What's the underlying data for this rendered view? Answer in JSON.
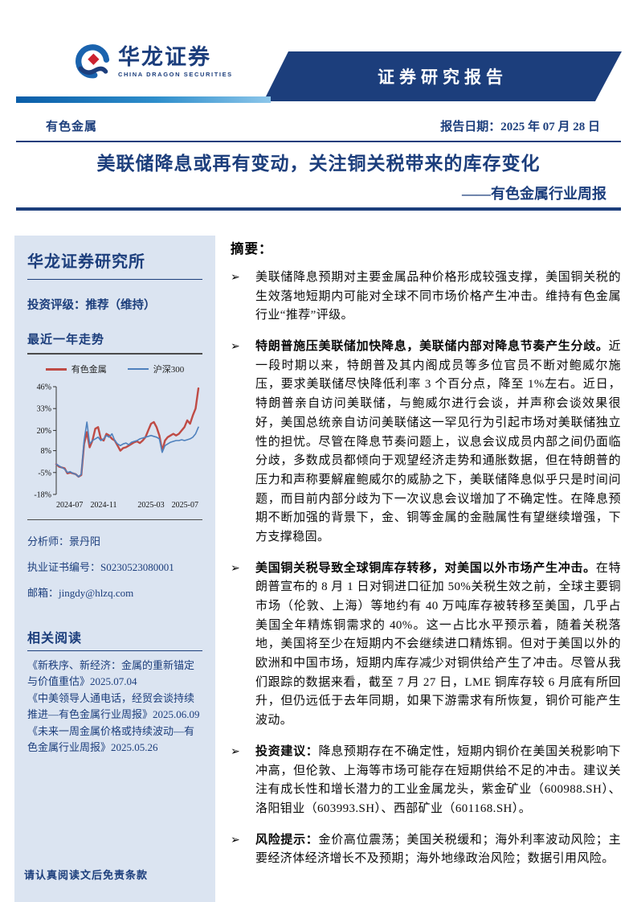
{
  "colors": {
    "navy": "#1c3e7c",
    "sidebar_bg": "#dbe4f1",
    "series_red": "#bf4b45",
    "series_blue": "#4f81bd",
    "banner_bg": "#1c3e7c",
    "diamond_red": "#cc2230"
  },
  "header": {
    "logo_cn": "华龙证券",
    "logo_en": "CHINA DRAGON SECURITIES",
    "banner": "证券研究报告",
    "industry": "有色金属",
    "report_date": "报告日期：2025 年 07 月 28 日",
    "title": "美联储降息或再有变动，关注铜关税带来的库存变化",
    "subtitle": "——有色金属行业周报"
  },
  "sidebar": {
    "institute": "华龙证券研究所",
    "rating": "投资评级：推荐（维持）",
    "chart_title": "最近一年走势",
    "analyst": [
      "分析师：景丹阳",
      "执业证书编号：S0230523080001",
      "邮箱：jingdy@hlzq.com"
    ],
    "related_title": "相关阅读",
    "related": [
      "《新秩序、新经济：金属的重新锚定与价值重估》2025.07.04",
      "《中美领导人通电话，经贸会谈持续推进—有色金属行业周报》2025.06.09",
      "《未来一周金属价格或持续波动—有色金属行业周报》2025.05.26"
    ],
    "footer": "请认真阅读文后免责条款"
  },
  "summary": {
    "heading": "摘要：",
    "marker": "➢",
    "bullets": [
      [
        {
          "b": false,
          "t": "美联储降息预期对主要金属品种价格形成较强支撑，美国铜关税的生效落地短期内可能对全球不同市场价格产生冲击。维持有色金属行业“推荐”评级。"
        }
      ],
      [
        {
          "b": true,
          "t": "特朗普施压美联储加快降息，美联储内部对降息节奏产生分歧。"
        },
        {
          "b": false,
          "t": "近一段时期以来，特朗普及其内阁成员等多位官员不断对鲍威尔施压，要求美联储尽快降低利率 3 个百分点，降至 1%左右。近日，特朗普亲自访问美联储，与鲍威尔进行会谈，并声称会谈效果很好，美国总统亲自访问美联储这一罕见行为引起市场对美联储独立性的担忧。尽管在降息节奏问题上，议息会议成员内部之间仍面临分歧，多数成员都倾向于观望经济走势和通胀数据，但在特朗普的压力和声称要解雇鲍威尔的威胁之下，美联储降息似乎只是时间问题，而目前内部分歧为下一次议息会议增加了不确定性。在降息预期不断加强的背景下，金、铜等金属的金融属性有望继续增强，下方支撑稳固。"
        }
      ],
      [
        {
          "b": true,
          "t": "美国铜关税导致全球铜库存转移，对美国以外市场产生冲击。"
        },
        {
          "b": false,
          "t": "在特朗普宣布的 8 月 1 日对铜进口征加 50%关税生效之前，全球主要铜市场（伦敦、上海）等地约有 40 万吨库存被转移至美国，几乎占美国全年精炼铜需求的 40%。这一占比水平预示着，随着关税落地，美国将至少在短期内不会继续进口精炼铜。但对于美国以外的欧洲和中国市场，短期内库存减少对铜供给产生了冲击。尽管从我们跟踪的数据来看，截至 7 月 27 日，LME 铜库存较 6 月底有所回升，但仍远低于去年同期，如果下游需求有所恢复，铜价可能产生波动。"
        }
      ],
      [
        {
          "b": true,
          "t": "投资建议："
        },
        {
          "b": false,
          "t": "降息预期存在不确定性，短期内铜价在美国关税影响下冲高，但伦敦、上海等市场可能存在短期供给不足的冲击。建议关注有成长性和增长潜力的工业金属龙头，紫金矿业（600988.SH）、洛阳钼业（603993.SH）、西部矿业（601168.SH）。"
        }
      ],
      [
        {
          "b": true,
          "t": "风险提示："
        },
        {
          "b": false,
          "t": "金价高位震荡；美国关税缓和；海外利率波动风险；主要经济体经济增长不及预期；海外地缘政治风险；数据引用风险。"
        }
      ]
    ]
  },
  "chart_data": {
    "type": "line",
    "title": "最近一年走势",
    "legend": [
      "有色金属",
      "沪深300"
    ],
    "x_ticks": [
      "2024-07",
      "2024-11",
      "2025-03",
      "2025-07"
    ],
    "y_ticks": [
      46,
      33,
      20,
      8,
      -5,
      -18
    ],
    "y_tick_labels": [
      "46%",
      "33%",
      "20%",
      "8%",
      "-5%",
      "-18%"
    ],
    "ylim": [
      -18,
      46
    ],
    "grid": false,
    "legend_position": "top",
    "series": [
      {
        "name": "有色金属",
        "color": "#bf4b45",
        "width": 2.4,
        "values": [
          0,
          -1.5,
          -2,
          -2.5,
          -5.5,
          -5,
          -5.5,
          -6,
          -7.5,
          -6.5,
          12,
          19,
          10,
          14,
          21,
          22,
          15,
          14,
          18,
          17,
          15,
          14,
          11,
          8,
          9.5,
          10,
          11,
          12,
          13,
          13.5,
          12.5,
          14,
          16,
          20,
          24,
          25,
          22,
          17,
          8,
          14,
          16,
          17,
          18,
          17,
          18,
          20,
          22,
          26,
          24,
          29,
          33,
          45
        ]
      },
      {
        "name": "沪深300",
        "color": "#4f81bd",
        "width": 1.6,
        "values": [
          0,
          -1,
          -2,
          -3,
          -5,
          -4.5,
          -5.5,
          -6,
          -7.5,
          -6,
          14,
          25,
          12,
          14,
          15,
          16,
          14,
          15,
          17,
          16,
          18,
          14,
          12,
          11,
          12,
          12.5,
          11.5,
          13,
          13.5,
          14,
          15,
          15.5,
          16,
          16.5,
          17,
          16.5,
          16,
          15,
          7,
          11,
          12,
          13,
          13.5,
          14,
          14,
          14.5,
          14,
          14.5,
          15,
          16,
          18,
          22
        ]
      }
    ]
  }
}
